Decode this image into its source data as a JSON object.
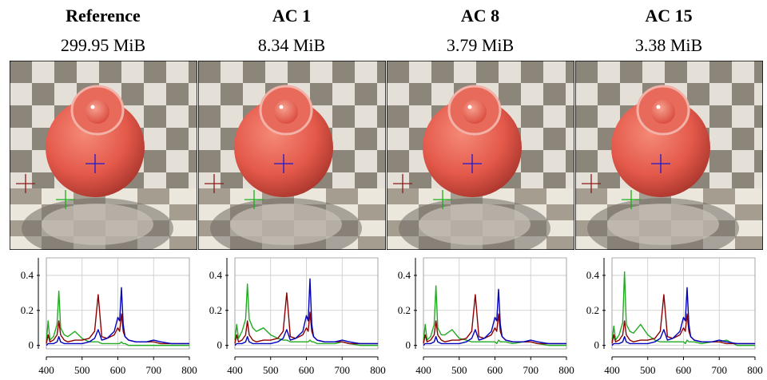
{
  "panels": [
    {
      "title": "Reference",
      "size": "299.95 MiB"
    },
    {
      "title": "AC 1",
      "size": "8.34 MiB"
    },
    {
      "title": "AC 8",
      "size": "3.79 MiB"
    },
    {
      "title": "AC 15",
      "size": "3.38 MiB"
    }
  ],
  "chart_data": [
    {
      "type": "line",
      "x": [
        400,
        405,
        410,
        420,
        430,
        435,
        440,
        450,
        460,
        480,
        500,
        520,
        535,
        545,
        555,
        570,
        590,
        600,
        605,
        610,
        615,
        620,
        630,
        650,
        680,
        700,
        720,
        750,
        800
      ],
      "series": [
        {
          "color": "#22aa22",
          "values": [
            0.02,
            0.14,
            0.03,
            0.05,
            0.12,
            0.31,
            0.1,
            0.06,
            0.05,
            0.08,
            0.04,
            0.02,
            0.02,
            0.02,
            0.01,
            0.01,
            0.01,
            0.01,
            0.01,
            0.02,
            0.01,
            0.01,
            0.0,
            0.0,
            0.0,
            0.0,
            0.0,
            0.0,
            0.0
          ]
        },
        {
          "color": "#8b0000",
          "values": [
            0.01,
            0.06,
            0.02,
            0.03,
            0.06,
            0.14,
            0.06,
            0.03,
            0.02,
            0.03,
            0.03,
            0.04,
            0.08,
            0.29,
            0.05,
            0.04,
            0.06,
            0.1,
            0.08,
            0.18,
            0.08,
            0.05,
            0.03,
            0.02,
            0.02,
            0.02,
            0.01,
            0.01,
            0.01
          ]
        },
        {
          "color": "#0000c0",
          "values": [
            0.0,
            0.01,
            0.01,
            0.01,
            0.02,
            0.05,
            0.02,
            0.01,
            0.01,
            0.01,
            0.01,
            0.02,
            0.04,
            0.09,
            0.03,
            0.04,
            0.08,
            0.16,
            0.14,
            0.33,
            0.12,
            0.05,
            0.03,
            0.02,
            0.02,
            0.03,
            0.02,
            0.01,
            0.01
          ]
        }
      ],
      "xlim": [
        400,
        800
      ],
      "ylim": [
        -0.02,
        0.5
      ],
      "xticks": [
        400,
        500,
        600,
        700,
        800
      ],
      "yticks": [
        0,
        0.2,
        0.4
      ],
      "grid": true
    },
    {
      "type": "line",
      "x": [
        400,
        405,
        410,
        420,
        430,
        435,
        440,
        450,
        460,
        480,
        500,
        520,
        535,
        545,
        555,
        570,
        590,
        600,
        605,
        610,
        615,
        620,
        630,
        650,
        680,
        700,
        720,
        750,
        800
      ],
      "series": [
        {
          "color": "#22aa22",
          "values": [
            0.03,
            0.12,
            0.04,
            0.08,
            0.15,
            0.35,
            0.15,
            0.1,
            0.08,
            0.1,
            0.06,
            0.04,
            0.03,
            0.03,
            0.02,
            0.02,
            0.02,
            0.02,
            0.02,
            0.03,
            0.02,
            0.02,
            0.01,
            0.01,
            0.01,
            0.02,
            0.01,
            0.0,
            0.0
          ]
        },
        {
          "color": "#8b0000",
          "values": [
            0.01,
            0.06,
            0.02,
            0.03,
            0.06,
            0.14,
            0.06,
            0.03,
            0.02,
            0.03,
            0.03,
            0.04,
            0.08,
            0.3,
            0.05,
            0.04,
            0.06,
            0.1,
            0.08,
            0.19,
            0.08,
            0.05,
            0.03,
            0.02,
            0.02,
            0.02,
            0.01,
            0.01,
            0.01
          ]
        },
        {
          "color": "#0000c0",
          "values": [
            0.0,
            0.01,
            0.01,
            0.01,
            0.02,
            0.05,
            0.02,
            0.01,
            0.01,
            0.01,
            0.01,
            0.02,
            0.04,
            0.09,
            0.03,
            0.04,
            0.08,
            0.17,
            0.14,
            0.38,
            0.12,
            0.05,
            0.03,
            0.02,
            0.02,
            0.03,
            0.02,
            0.01,
            0.01
          ]
        }
      ],
      "xlim": [
        400,
        800
      ],
      "ylim": [
        -0.02,
        0.5
      ],
      "xticks": [
        400,
        500,
        600,
        700,
        800
      ],
      "yticks": [
        0,
        0.2,
        0.4
      ],
      "grid": true
    },
    {
      "type": "line",
      "x": [
        400,
        405,
        410,
        420,
        430,
        435,
        440,
        450,
        460,
        480,
        500,
        520,
        535,
        545,
        555,
        570,
        590,
        600,
        605,
        610,
        615,
        620,
        630,
        650,
        680,
        700,
        720,
        750,
        800
      ],
      "series": [
        {
          "color": "#22aa22",
          "values": [
            0.02,
            0.12,
            0.03,
            0.05,
            0.12,
            0.34,
            0.1,
            0.06,
            0.06,
            0.09,
            0.04,
            0.03,
            0.02,
            0.02,
            0.02,
            0.02,
            0.02,
            0.02,
            0.01,
            0.03,
            0.02,
            0.02,
            0.02,
            0.01,
            0.02,
            0.02,
            0.01,
            0.0,
            0.0
          ]
        },
        {
          "color": "#8b0000",
          "values": [
            0.01,
            0.06,
            0.02,
            0.03,
            0.06,
            0.14,
            0.06,
            0.03,
            0.02,
            0.03,
            0.03,
            0.04,
            0.08,
            0.29,
            0.05,
            0.04,
            0.06,
            0.1,
            0.08,
            0.18,
            0.08,
            0.05,
            0.03,
            0.02,
            0.02,
            0.02,
            0.01,
            0.01,
            0.01
          ]
        },
        {
          "color": "#0000c0",
          "values": [
            0.0,
            0.01,
            0.01,
            0.01,
            0.02,
            0.05,
            0.02,
            0.01,
            0.01,
            0.01,
            0.01,
            0.02,
            0.04,
            0.09,
            0.03,
            0.04,
            0.08,
            0.16,
            0.14,
            0.32,
            0.12,
            0.05,
            0.03,
            0.02,
            0.02,
            0.03,
            0.02,
            0.01,
            0.01
          ]
        }
      ],
      "xlim": [
        400,
        800
      ],
      "ylim": [
        -0.02,
        0.5
      ],
      "xticks": [
        400,
        500,
        600,
        700,
        800
      ],
      "yticks": [
        0,
        0.2,
        0.4
      ],
      "grid": true
    },
    {
      "type": "line",
      "x": [
        400,
        405,
        410,
        420,
        430,
        435,
        440,
        450,
        460,
        480,
        500,
        520,
        535,
        545,
        555,
        570,
        590,
        600,
        605,
        610,
        615,
        620,
        630,
        650,
        680,
        700,
        720,
        750,
        800
      ],
      "series": [
        {
          "color": "#22aa22",
          "values": [
            0.02,
            0.11,
            0.03,
            0.06,
            0.13,
            0.42,
            0.12,
            0.08,
            0.07,
            0.12,
            0.06,
            0.03,
            0.02,
            0.02,
            0.02,
            0.02,
            0.02,
            0.02,
            0.01,
            0.03,
            0.02,
            0.02,
            0.02,
            0.01,
            0.02,
            0.02,
            0.03,
            0.0,
            0.0
          ]
        },
        {
          "color": "#8b0000",
          "values": [
            0.01,
            0.06,
            0.02,
            0.03,
            0.06,
            0.14,
            0.06,
            0.03,
            0.02,
            0.03,
            0.03,
            0.04,
            0.08,
            0.29,
            0.05,
            0.04,
            0.06,
            0.1,
            0.08,
            0.18,
            0.08,
            0.05,
            0.03,
            0.02,
            0.02,
            0.02,
            0.01,
            0.01,
            0.01
          ]
        },
        {
          "color": "#0000c0",
          "values": [
            0.0,
            0.01,
            0.01,
            0.01,
            0.02,
            0.05,
            0.02,
            0.01,
            0.01,
            0.01,
            0.01,
            0.02,
            0.04,
            0.09,
            0.03,
            0.04,
            0.08,
            0.16,
            0.14,
            0.33,
            0.12,
            0.05,
            0.03,
            0.02,
            0.02,
            0.03,
            0.02,
            0.01,
            0.01
          ]
        }
      ],
      "xlim": [
        400,
        800
      ],
      "ylim": [
        -0.02,
        0.5
      ],
      "xticks": [
        400,
        500,
        600,
        700,
        800
      ],
      "yticks": [
        0,
        0.2,
        0.4
      ],
      "grid": true
    }
  ]
}
